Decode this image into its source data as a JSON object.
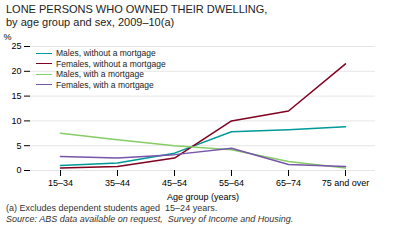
{
  "chart_data": {
    "type": "line",
    "title": "LONE PERSONS WHO OWNED THEIR DWELLING,",
    "subtitle": "by age group and sex, 2009–10(a)",
    "xlabel": "Age group (years)",
    "ylabel": "%",
    "annotations": [
      "(a) Excludes dependent students aged  15–24 years.",
      "Source: ABS data available on request,  Survey of Income and Housing."
    ],
    "categories": [
      "15–34",
      "35–44",
      "45–54",
      "55–64",
      "65–74",
      "75 and over"
    ],
    "series": [
      {
        "name": "Males, without a mortgage",
        "color": "#009999",
        "values": [
          1.0,
          1.5,
          3.5,
          7.8,
          8.2,
          8.8
        ]
      },
      {
        "name": "Females, without a mortgage",
        "color": "#800020",
        "values": [
          0.5,
          0.8,
          2.5,
          10.0,
          12.0,
          21.5
        ]
      },
      {
        "name": "Males, with a mortgage",
        "color": "#88CC66",
        "values": [
          7.5,
          6.2,
          5.0,
          4.2,
          1.8,
          0.5
        ]
      },
      {
        "name": "Females, with a mortgage",
        "color": "#7755AA",
        "values": [
          2.8,
          2.5,
          3.2,
          4.5,
          1.2,
          0.8
        ]
      }
    ],
    "ylim": [
      0,
      25
    ],
    "yticks": [
      0,
      5,
      10,
      15,
      20,
      25
    ],
    "grid": true,
    "legend": "upper left"
  }
}
